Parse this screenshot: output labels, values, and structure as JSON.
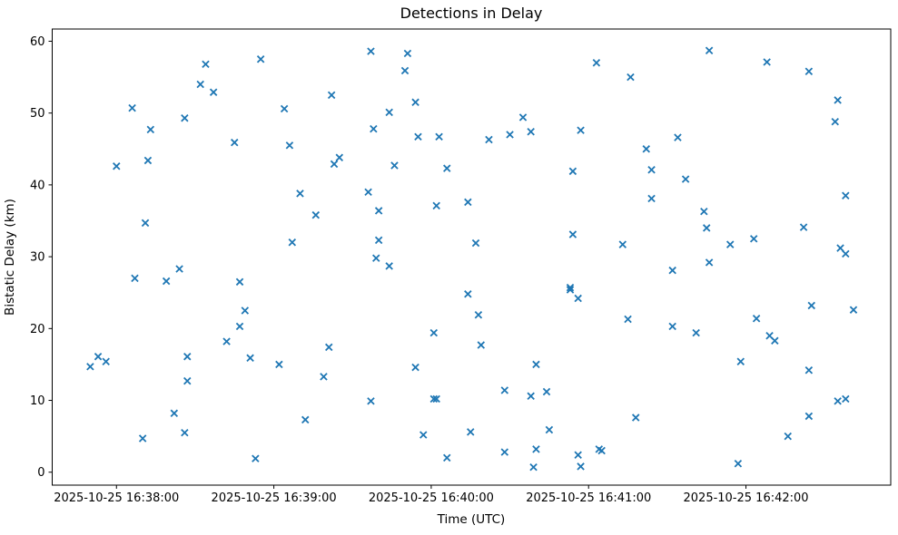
{
  "figure": {
    "background": "#ffffff",
    "spine_color": "#000000"
  },
  "chart_data": {
    "type": "scatter",
    "title": "Detections in Delay",
    "xlabel": "Time (UTC)",
    "ylabel": "Bistatic Delay (km)",
    "marker": "x",
    "marker_color": "#1f77b4",
    "grid": false,
    "legend": null,
    "x_unit": "seconds after 2025-10-25 16:38:00 UTC",
    "xlim": [
      -24.5,
      295.2
    ],
    "ylim": [
      -1.8,
      61.7
    ],
    "x_ticks": [
      {
        "value": 0,
        "label": "2025-10-25 16:38:00"
      },
      {
        "value": 60,
        "label": "2025-10-25 16:39:00"
      },
      {
        "value": 120,
        "label": "2025-10-25 16:40:00"
      },
      {
        "value": 180,
        "label": "2025-10-25 16:41:00"
      },
      {
        "value": 240,
        "label": "2025-10-25 16:42:00"
      }
    ],
    "y_ticks": [
      0,
      10,
      20,
      30,
      40,
      50,
      60
    ],
    "points": [
      [
        34,
        56.8
      ],
      [
        55,
        57.5
      ],
      [
        32,
        54.0
      ],
      [
        37,
        52.9
      ],
      [
        6,
        50.7
      ],
      [
        26,
        49.3
      ],
      [
        13,
        47.7
      ],
      [
        45,
        45.9
      ],
      [
        12,
        43.4
      ],
      [
        0,
        42.6
      ],
      [
        11,
        34.7
      ],
      [
        97,
        58.6
      ],
      [
        111,
        58.3
      ],
      [
        110,
        55.9
      ],
      [
        82,
        52.5
      ],
      [
        64,
        50.6
      ],
      [
        114,
        51.5
      ],
      [
        104,
        50.1
      ],
      [
        98,
        47.8
      ],
      [
        115,
        46.7
      ],
      [
        123,
        46.7
      ],
      [
        66,
        45.5
      ],
      [
        85,
        43.8
      ],
      [
        83,
        42.9
      ],
      [
        106,
        42.7
      ],
      [
        126,
        42.3
      ],
      [
        70,
        38.8
      ],
      [
        96,
        39.0
      ],
      [
        100,
        36.4
      ],
      [
        122,
        37.1
      ],
      [
        134,
        37.6
      ],
      [
        76,
        35.8
      ],
      [
        67,
        32.0
      ],
      [
        100,
        32.3
      ],
      [
        183,
        57.0
      ],
      [
        196,
        55.0
      ],
      [
        155,
        49.4
      ],
      [
        177,
        47.6
      ],
      [
        150,
        47.0
      ],
      [
        158,
        47.4
      ],
      [
        142,
        46.3
      ],
      [
        202,
        45.0
      ],
      [
        174,
        41.9
      ],
      [
        204,
        42.1
      ],
      [
        204,
        38.1
      ],
      [
        174,
        33.1
      ],
      [
        137,
        31.9
      ],
      [
        193,
        31.7
      ],
      [
        226,
        58.7
      ],
      [
        248,
        57.1
      ],
      [
        264,
        55.8
      ],
      [
        275,
        51.8
      ],
      [
        274,
        48.8
      ],
      [
        214,
        46.6
      ],
      [
        217,
        40.8
      ],
      [
        278,
        38.5
      ],
      [
        224,
        36.3
      ],
      [
        225,
        34.0
      ],
      [
        262,
        34.1
      ],
      [
        243,
        32.5
      ],
      [
        234,
        31.7
      ],
      [
        276,
        31.2
      ],
      [
        278,
        30.4
      ],
      [
        24,
        28.3
      ],
      [
        7,
        27.0
      ],
      [
        19,
        26.6
      ],
      [
        47,
        26.5
      ],
      [
        49,
        22.5
      ],
      [
        47,
        20.3
      ],
      [
        42,
        18.2
      ],
      [
        -7,
        16.1
      ],
      [
        -4,
        15.4
      ],
      [
        -10,
        14.7
      ],
      [
        27,
        16.1
      ],
      [
        51,
        15.9
      ],
      [
        27,
        12.7
      ],
      [
        22,
        8.2
      ],
      [
        26,
        5.5
      ],
      [
        10,
        4.7
      ],
      [
        53,
        1.9
      ],
      [
        99,
        29.8
      ],
      [
        104,
        28.7
      ],
      [
        134,
        24.8
      ],
      [
        121,
        19.4
      ],
      [
        81,
        17.4
      ],
      [
        62,
        15.0
      ],
      [
        79,
        13.3
      ],
      [
        114,
        14.6
      ],
      [
        97,
        9.9
      ],
      [
        121,
        10.2
      ],
      [
        122,
        10.2
      ],
      [
        72,
        7.3
      ],
      [
        117,
        5.2
      ],
      [
        126,
        2.0
      ],
      [
        135,
        5.6
      ],
      [
        212,
        28.1
      ],
      [
        173,
        25.7
      ],
      [
        173,
        25.4
      ],
      [
        176,
        24.2
      ],
      [
        138,
        21.9
      ],
      [
        195,
        21.3
      ],
      [
        212,
        20.3
      ],
      [
        139,
        17.7
      ],
      [
        160,
        15.0
      ],
      [
        148,
        11.4
      ],
      [
        158,
        10.6
      ],
      [
        164,
        11.2
      ],
      [
        198,
        7.6
      ],
      [
        165,
        5.9
      ],
      [
        148,
        2.8
      ],
      [
        160,
        3.2
      ],
      [
        176,
        2.4
      ],
      [
        184,
        3.2
      ],
      [
        185,
        3.0
      ],
      [
        159,
        0.7
      ],
      [
        177,
        0.8
      ],
      [
        226,
        29.2
      ],
      [
        265,
        23.2
      ],
      [
        281,
        22.6
      ],
      [
        244,
        21.4
      ],
      [
        221,
        19.4
      ],
      [
        249,
        19.0
      ],
      [
        251,
        18.3
      ],
      [
        238,
        15.4
      ],
      [
        264,
        14.2
      ],
      [
        275,
        9.9
      ],
      [
        278,
        10.2
      ],
      [
        264,
        7.8
      ],
      [
        256,
        5.0
      ],
      [
        237,
        1.2
      ]
    ]
  }
}
